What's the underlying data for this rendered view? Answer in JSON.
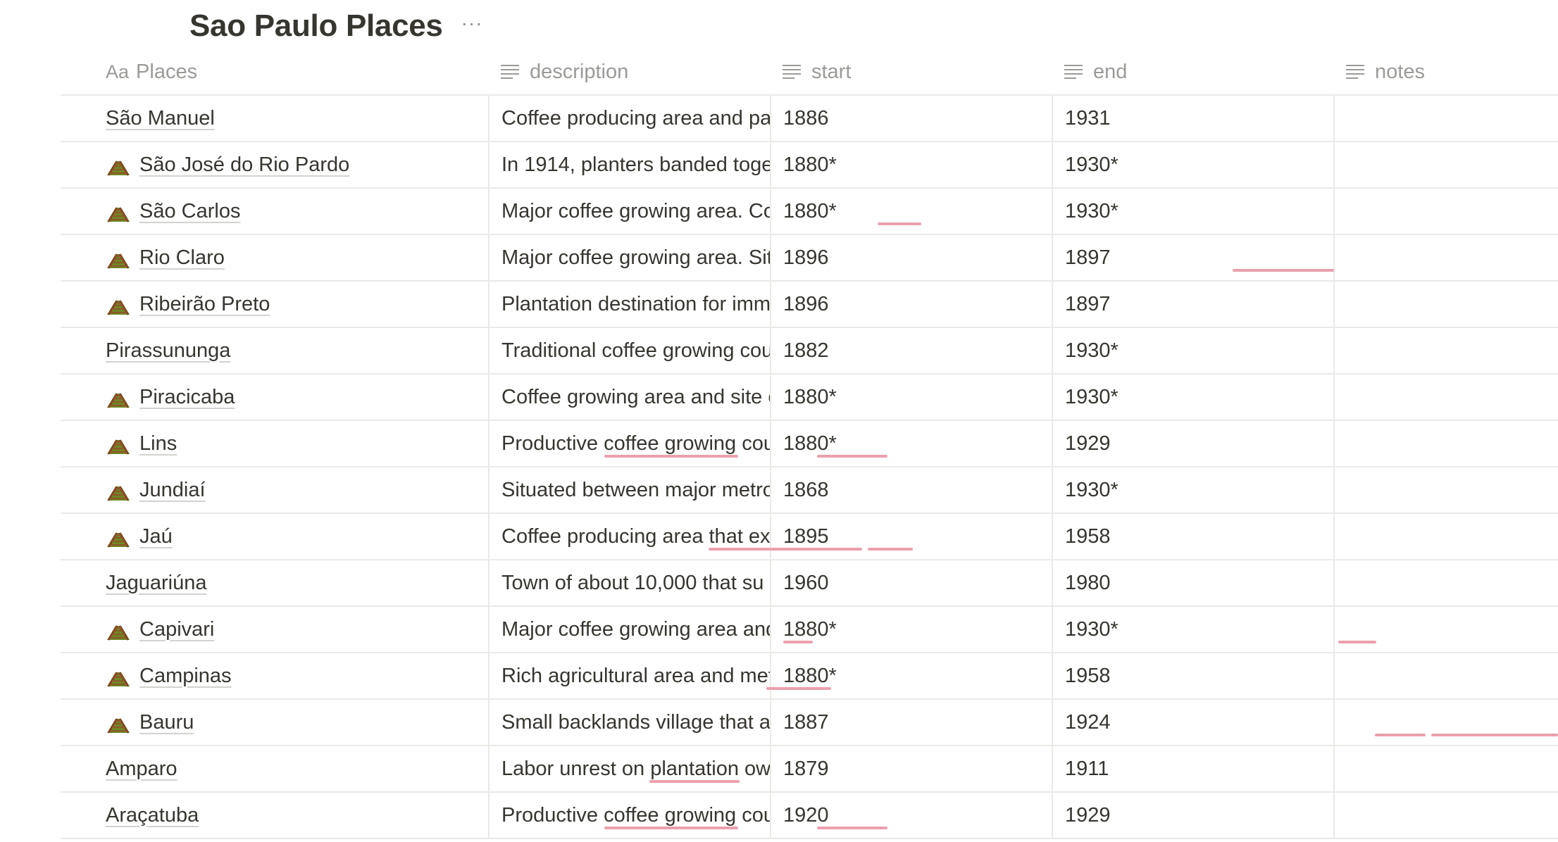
{
  "page": {
    "title": "Sao Paulo Places",
    "more_label": "···"
  },
  "columns": {
    "places": {
      "label": "Places",
      "type_label": "Aa"
    },
    "description": {
      "label": "description"
    },
    "start": {
      "label": "start"
    },
    "end": {
      "label": "end"
    },
    "notes": {
      "label": "notes"
    }
  },
  "rows": [
    {
      "name": "São Manuel",
      "icon": false,
      "description": "Coffee producing area and pa",
      "start": "1886",
      "end": "1931",
      "notes": ""
    },
    {
      "name": "São José do Rio Pardo",
      "icon": true,
      "description": "In 1914, planters banded toge",
      "start": "1880*",
      "end": "1930*",
      "notes": ""
    },
    {
      "name": "São Carlos",
      "icon": true,
      "description": "Major coffee growing area. Co",
      "start": "1880*",
      "end": "1930*",
      "notes": ""
    },
    {
      "name": "Rio Claro",
      "icon": true,
      "description": "Major coffee growing area. Sit",
      "start": "1896",
      "end": "1897",
      "notes": ""
    },
    {
      "name": "Ribeirão Preto",
      "icon": true,
      "description": "Plantation destination for imm",
      "start": "1896",
      "end": "1897",
      "notes": ""
    },
    {
      "name": "Pirassununga",
      "icon": false,
      "description": "Traditional coffee growing cou",
      "start": "1882",
      "end": "1930*",
      "notes": ""
    },
    {
      "name": "Piracicaba",
      "icon": true,
      "description": "Coffee growing area and site o",
      "start": "1880*",
      "end": "1930*",
      "notes": ""
    },
    {
      "name": "Lins",
      "icon": true,
      "description": "Productive coffee growing cou",
      "start": "1880*",
      "end": "1929",
      "notes": ""
    },
    {
      "name": "Jundiaí",
      "icon": true,
      "description": "Situated between major metro",
      "start": "1868",
      "end": "1930*",
      "notes": ""
    },
    {
      "name": "Jaú",
      "icon": true,
      "description": "Coffee producing area that ex",
      "start": "1895",
      "end": "1958",
      "notes": ""
    },
    {
      "name": "Jaguariúna",
      "icon": false,
      "description": "Town of about 10,000 that su",
      "start": "1960",
      "end": "1980",
      "notes": ""
    },
    {
      "name": "Capivari",
      "icon": true,
      "description": "Major coffee growing area and",
      "start": "1880*",
      "end": "1930*",
      "notes": ""
    },
    {
      "name": "Campinas",
      "icon": true,
      "description": "Rich agricultural area and met",
      "start": "1880*",
      "end": "1958",
      "notes": ""
    },
    {
      "name": "Bauru",
      "icon": true,
      "description": "Small backlands village that a",
      "start": "1887",
      "end": "1924",
      "notes": ""
    },
    {
      "name": "Amparo",
      "icon": false,
      "description": "Labor unrest on plantation ow",
      "start": "1879",
      "end": "1911",
      "notes": ""
    },
    {
      "name": "Araçatuba",
      "icon": false,
      "description": "Productive coffee growing cou",
      "start": "1920",
      "end": "1929",
      "notes": ""
    }
  ],
  "icons": {
    "row_icon": "railway-track-icon",
    "text_property": "text-lines-icon",
    "more": "more-dots-icon"
  },
  "colors": {
    "spellcheck": "#eaa0ad",
    "header_text": "#9b9a97",
    "grid": "#e9e9e7"
  }
}
